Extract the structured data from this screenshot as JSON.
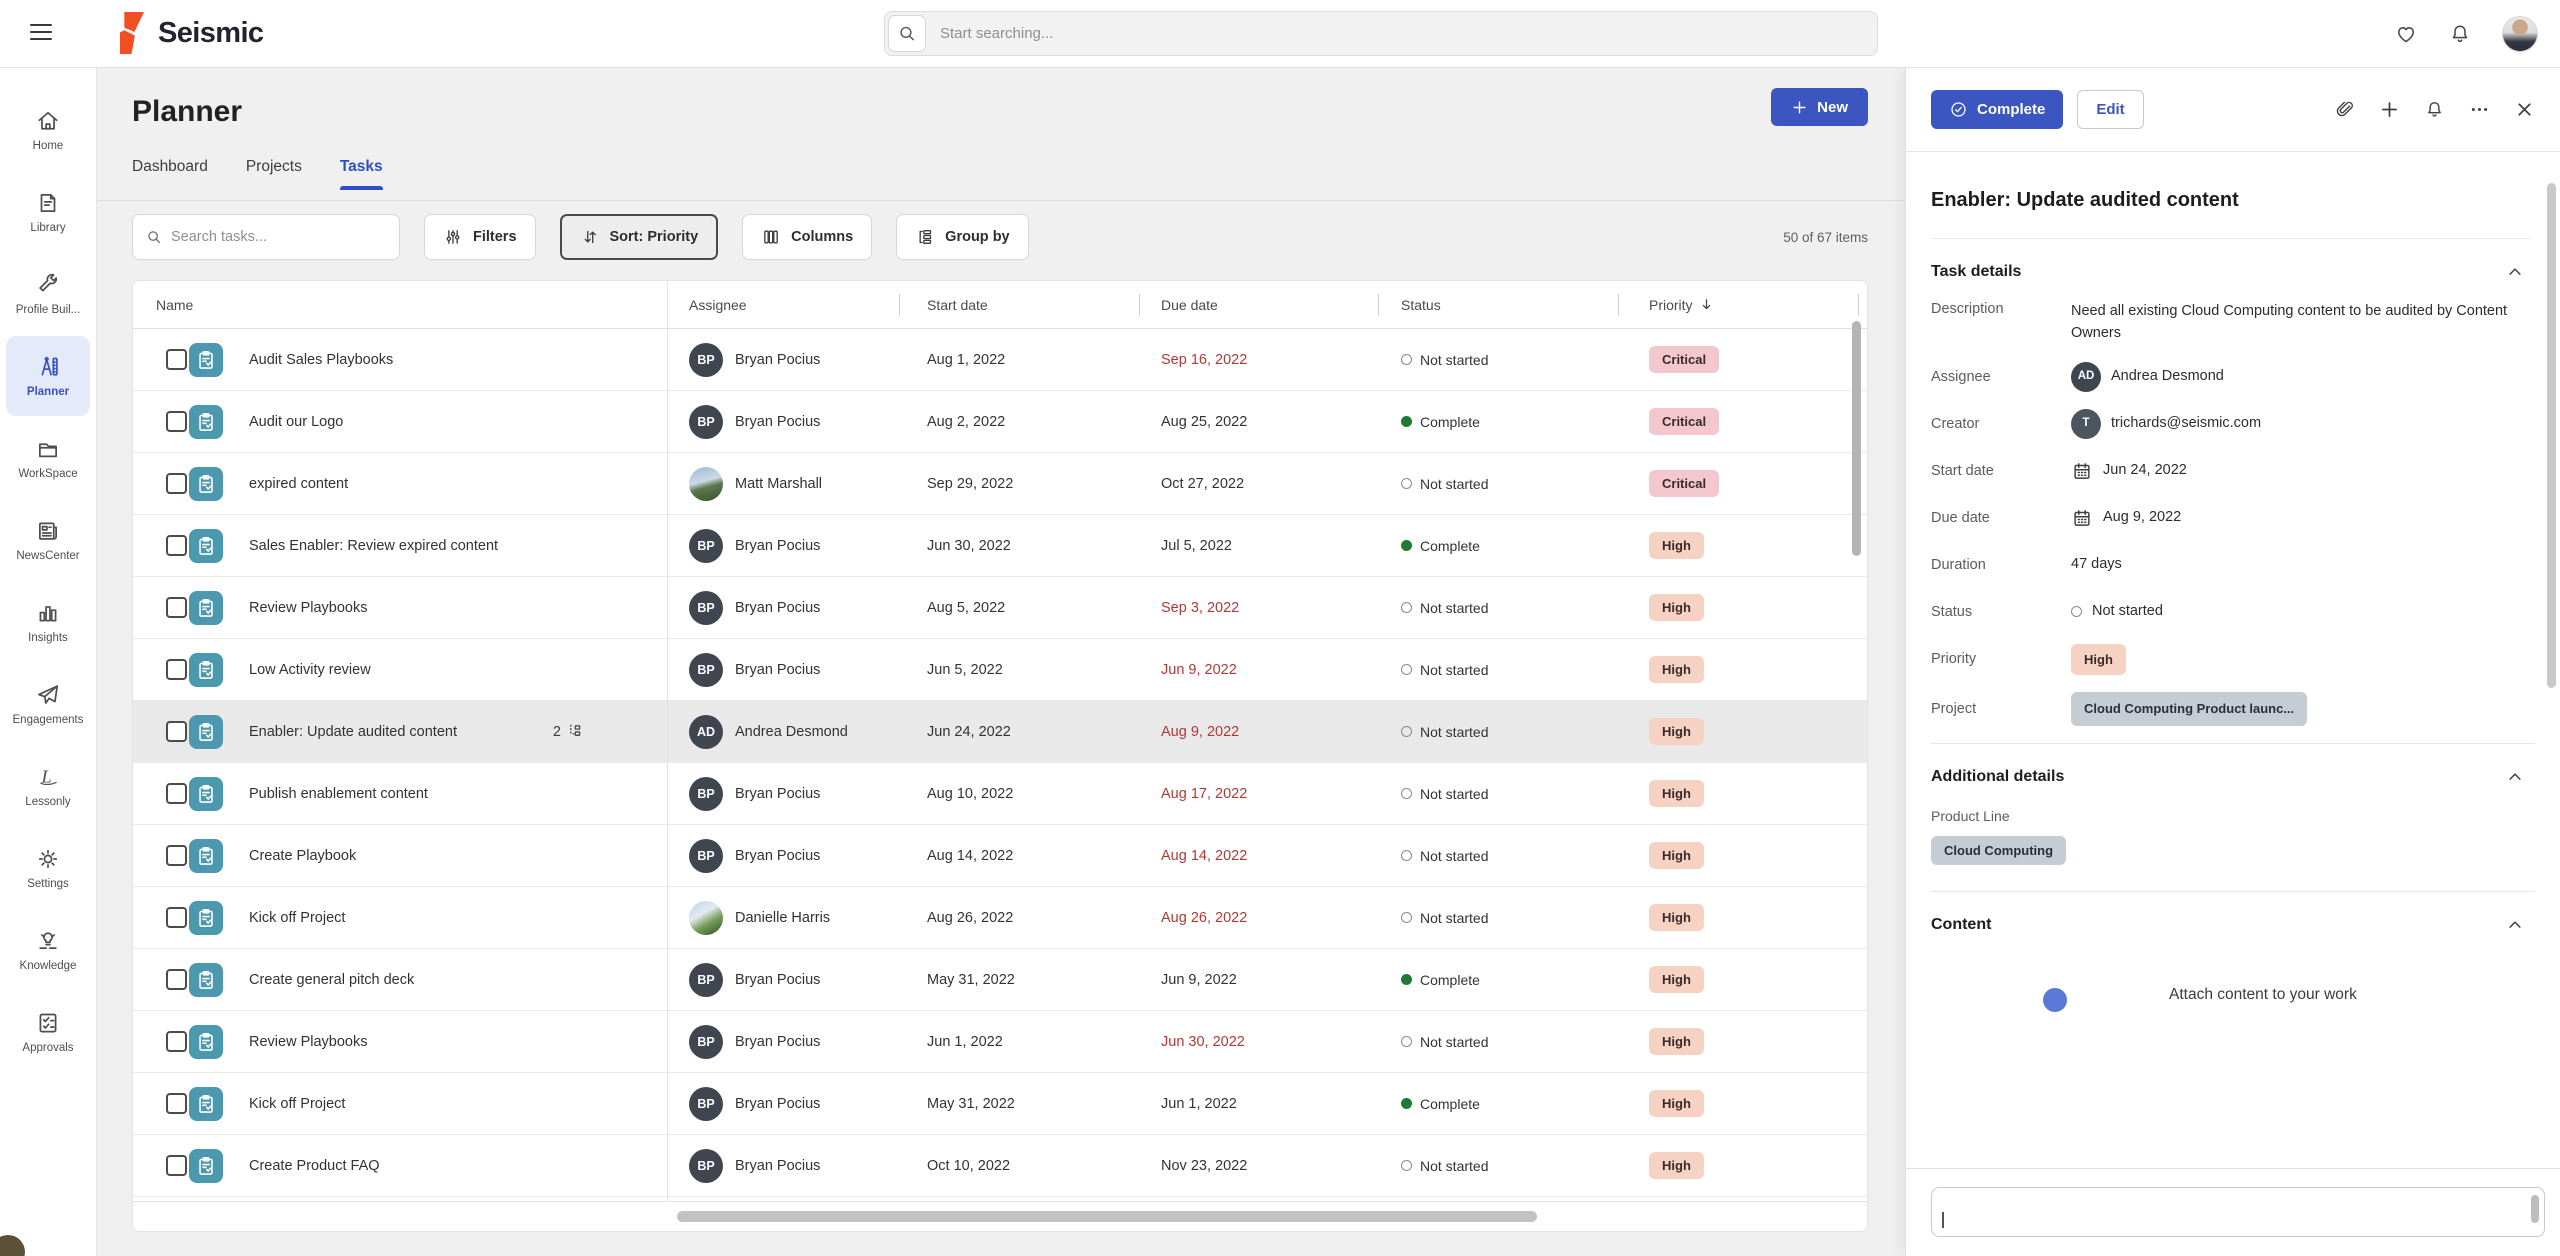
{
  "topbar": {
    "logo_text": "Seismic",
    "search_placeholder": "Start searching..."
  },
  "sidebar": {
    "items": [
      {
        "label": "Home",
        "icon": "home",
        "active": false
      },
      {
        "label": "Library",
        "icon": "library",
        "active": false
      },
      {
        "label": "Profile Buil...",
        "icon": "wrench",
        "active": false
      },
      {
        "label": "Planner",
        "icon": "planner",
        "active": true
      },
      {
        "label": "WorkSpace",
        "icon": "folder",
        "active": false
      },
      {
        "label": "NewsCenter",
        "icon": "news",
        "active": false
      },
      {
        "label": "Insights",
        "icon": "insights",
        "active": false
      },
      {
        "label": "Engagements",
        "icon": "plane",
        "active": false
      },
      {
        "label": "Lessonly",
        "icon": "lessonly",
        "active": false
      },
      {
        "label": "Settings",
        "icon": "gear",
        "active": false
      },
      {
        "label": "Knowledge",
        "icon": "knowledge",
        "active": false
      },
      {
        "label": "Approvals",
        "icon": "approvals",
        "active": false
      }
    ]
  },
  "page": {
    "title": "Planner",
    "new_button": "New",
    "tabs": [
      {
        "label": "Dashboard",
        "active": false
      },
      {
        "label": "Projects",
        "active": false
      },
      {
        "label": "Tasks",
        "active": true
      }
    ]
  },
  "toolbar": {
    "search_placeholder": "Search tasks...",
    "filters": "Filters",
    "sort": "Sort: Priority",
    "columns": "Columns",
    "group_by": "Group by",
    "items_count": "50 of 67 items"
  },
  "table": {
    "columns": [
      "Name",
      "Assignee",
      "Start date",
      "Due date",
      "Status",
      "Priority"
    ],
    "sorted_column": "Priority",
    "rows": [
      {
        "name": "Audit Sales Playbooks",
        "assignee": "Bryan Pocius",
        "avatar": "BP",
        "photo": "",
        "start": "Aug 1, 2022",
        "due": "Sep 16, 2022",
        "overdue": true,
        "status": "Not started",
        "priority": "Critical",
        "subtasks": "",
        "selected": false
      },
      {
        "name": "Audit our Logo",
        "assignee": "Bryan Pocius",
        "avatar": "BP",
        "photo": "",
        "start": "Aug 2, 2022",
        "due": "Aug 25, 2022",
        "overdue": false,
        "status": "Complete",
        "priority": "Critical",
        "subtasks": "",
        "selected": false
      },
      {
        "name": "expired content",
        "assignee": "Matt Marshall",
        "avatar": "",
        "photo": "a",
        "start": "Sep 29, 2022",
        "due": "Oct 27, 2022",
        "overdue": false,
        "status": "Not started",
        "priority": "Critical",
        "subtasks": "",
        "selected": false
      },
      {
        "name": "Sales Enabler: Review expired content",
        "assignee": "Bryan Pocius",
        "avatar": "BP",
        "photo": "",
        "start": "Jun 30, 2022",
        "due": "Jul 5, 2022",
        "overdue": false,
        "status": "Complete",
        "priority": "High",
        "subtasks": "",
        "selected": false
      },
      {
        "name": "Review Playbooks",
        "assignee": "Bryan Pocius",
        "avatar": "BP",
        "photo": "",
        "start": "Aug 5, 2022",
        "due": "Sep 3, 2022",
        "overdue": true,
        "status": "Not started",
        "priority": "High",
        "subtasks": "",
        "selected": false
      },
      {
        "name": "Low Activity review",
        "assignee": "Bryan Pocius",
        "avatar": "BP",
        "photo": "",
        "start": "Jun 5, 2022",
        "due": "Jun 9, 2022",
        "overdue": true,
        "status": "Not started",
        "priority": "High",
        "subtasks": "",
        "selected": false
      },
      {
        "name": "Enabler: Update audited content",
        "assignee": "Andrea Desmond",
        "avatar": "AD",
        "photo": "",
        "start": "Jun 24, 2022",
        "due": "Aug 9, 2022",
        "overdue": true,
        "status": "Not started",
        "priority": "High",
        "subtasks": "2",
        "selected": true
      },
      {
        "name": "Publish enablement content",
        "assignee": "Bryan Pocius",
        "avatar": "BP",
        "photo": "",
        "start": "Aug 10, 2022",
        "due": "Aug 17, 2022",
        "overdue": true,
        "status": "Not started",
        "priority": "High",
        "subtasks": "",
        "selected": false
      },
      {
        "name": "Create Playbook",
        "assignee": "Bryan Pocius",
        "avatar": "BP",
        "photo": "",
        "start": "Aug 14, 2022",
        "due": "Aug 14, 2022",
        "overdue": true,
        "status": "Not started",
        "priority": "High",
        "subtasks": "",
        "selected": false
      },
      {
        "name": "Kick off Project",
        "assignee": "Danielle Harris",
        "avatar": "",
        "photo": "b",
        "start": "Aug 26, 2022",
        "due": "Aug 26, 2022",
        "overdue": true,
        "status": "Not started",
        "priority": "High",
        "subtasks": "",
        "selected": false
      },
      {
        "name": "Create general pitch deck",
        "assignee": "Bryan Pocius",
        "avatar": "BP",
        "photo": "",
        "start": "May 31, 2022",
        "due": "Jun 9, 2022",
        "overdue": false,
        "status": "Complete",
        "priority": "High",
        "subtasks": "",
        "selected": false
      },
      {
        "name": "Review Playbooks",
        "assignee": "Bryan Pocius",
        "avatar": "BP",
        "photo": "",
        "start": "Jun 1, 2022",
        "due": "Jun 30, 2022",
        "overdue": true,
        "status": "Not started",
        "priority": "High",
        "subtasks": "",
        "selected": false
      },
      {
        "name": "Kick off Project",
        "assignee": "Bryan Pocius",
        "avatar": "BP",
        "photo": "",
        "start": "May 31, 2022",
        "due": "Jun 1, 2022",
        "overdue": false,
        "status": "Complete",
        "priority": "High",
        "subtasks": "",
        "selected": false
      },
      {
        "name": "Create Product FAQ",
        "assignee": "Bryan Pocius",
        "avatar": "BP",
        "photo": "",
        "start": "Oct 10, 2022",
        "due": "Nov 23, 2022",
        "overdue": false,
        "status": "Not started",
        "priority": "High",
        "subtasks": "",
        "selected": false
      }
    ]
  },
  "panel": {
    "complete_button": "Complete",
    "edit_button": "Edit",
    "title": "Enabler: Update audited content",
    "task_details_heading": "Task details",
    "fields": [
      {
        "label": "Description",
        "type": "text",
        "value": "Need all existing Cloud Computing content to be audited by Content Owners"
      },
      {
        "label": "Assignee",
        "type": "person",
        "initials": "AD",
        "value": "Andrea Desmond"
      },
      {
        "label": "Creator",
        "type": "person-creator",
        "initials": "T",
        "value": "trichards@seismic.com"
      },
      {
        "label": "Start date",
        "type": "date",
        "value": "Jun 24, 2022"
      },
      {
        "label": "Due date",
        "type": "date",
        "value": "Aug 9, 2022"
      },
      {
        "label": "Duration",
        "type": "text",
        "value": "47 days"
      },
      {
        "label": "Status",
        "type": "status",
        "value": "Not started"
      },
      {
        "label": "Priority",
        "type": "badge-high",
        "value": "High"
      },
      {
        "label": "Project",
        "type": "badge-gray",
        "value": "Cloud Computing Product launc..."
      }
    ],
    "additional_details_heading": "Additional details",
    "product_line_label": "Product Line",
    "product_line_value": "Cloud Computing",
    "content_heading": "Content",
    "content_hint": "Attach content to your work"
  },
  "colors": {
    "accent_blue": "#3B55C1",
    "logo_orange": "#F04E23",
    "overdue_red": "#AE3A36",
    "complete_green": "#1E7B34",
    "critical_badge_bg": "#F2C7CE",
    "high_badge_bg": "#F6D2C2",
    "task_icon_teal": "#4C98AF",
    "gray_tag_bg": "#C6CCD4"
  }
}
